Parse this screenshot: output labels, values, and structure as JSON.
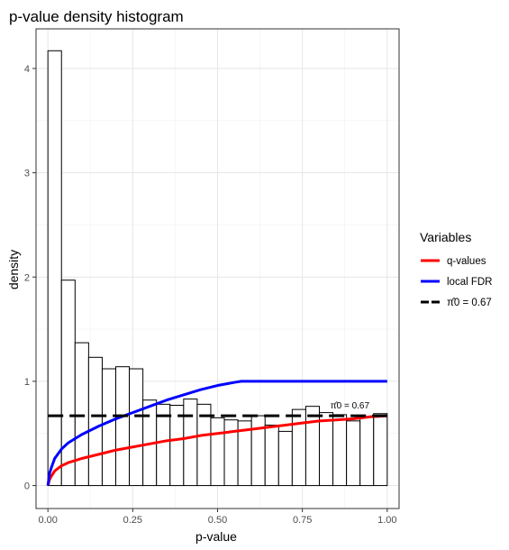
{
  "chart_data": {
    "type": "bar",
    "title": "p-value density histogram",
    "xlabel": "p-value",
    "ylabel": "density",
    "xlim": [
      -0.035,
      1.035
    ],
    "ylim": [
      -0.22,
      4.38
    ],
    "x_ticks": [
      0,
      0.25,
      0.5,
      0.75,
      1
    ],
    "x_tick_labels": [
      "0.00",
      "0.25",
      "0.50",
      "0.75",
      "1.00"
    ],
    "y_ticks": [
      0,
      1,
      2,
      3,
      4
    ],
    "y_tick_labels": [
      "0",
      "1",
      "2",
      "3",
      "4"
    ],
    "grid": true,
    "histogram": {
      "bin_width": 0.04,
      "bin_starts": [
        0,
        0.04,
        0.08,
        0.12,
        0.16,
        0.2,
        0.24,
        0.28,
        0.32,
        0.36,
        0.4,
        0.44,
        0.48,
        0.52,
        0.56,
        0.6,
        0.64,
        0.68,
        0.72,
        0.76,
        0.8,
        0.84,
        0.88,
        0.92,
        0.96
      ],
      "values": [
        4.17,
        1.97,
        1.37,
        1.23,
        1.12,
        1.14,
        1.12,
        0.82,
        0.78,
        0.77,
        0.83,
        0.78,
        0.65,
        0.63,
        0.62,
        0.67,
        0.58,
        0.52,
        0.73,
        0.76,
        0.7,
        0.68,
        0.62,
        0.66,
        0.69
      ]
    },
    "series": [
      {
        "name": "q-values",
        "color": "#ff0000",
        "x": [
          0,
          0.005,
          0.01,
          0.02,
          0.04,
          0.06,
          0.08,
          0.1,
          0.15,
          0.2,
          0.25,
          0.3,
          0.35,
          0.4,
          0.45,
          0.5,
          0.55,
          0.6,
          0.65,
          0.7,
          0.75,
          0.8,
          0.85,
          0.9,
          0.95,
          1.0
        ],
        "values": [
          0.0,
          0.06,
          0.09,
          0.14,
          0.19,
          0.22,
          0.24,
          0.26,
          0.3,
          0.34,
          0.37,
          0.4,
          0.43,
          0.45,
          0.48,
          0.5,
          0.52,
          0.54,
          0.56,
          0.58,
          0.6,
          0.62,
          0.63,
          0.64,
          0.66,
          0.67
        ]
      },
      {
        "name": "local FDR",
        "color": "#0000ff",
        "x": [
          0,
          0.005,
          0.01,
          0.02,
          0.04,
          0.06,
          0.08,
          0.1,
          0.15,
          0.2,
          0.25,
          0.3,
          0.35,
          0.4,
          0.45,
          0.5,
          0.55,
          0.57,
          0.6,
          0.7,
          0.8,
          0.9,
          1.0
        ],
        "values": [
          0.0,
          0.12,
          0.17,
          0.26,
          0.35,
          0.41,
          0.45,
          0.49,
          0.57,
          0.64,
          0.7,
          0.76,
          0.82,
          0.87,
          0.92,
          0.96,
          0.99,
          1.0,
          1.0,
          1.0,
          1.0,
          1.0,
          1.0
        ]
      },
      {
        "name": "π̂0 = 0.67",
        "color": "#000000",
        "dashed": true,
        "x": [
          0,
          1
        ],
        "values": [
          0.67,
          0.67
        ]
      }
    ],
    "annotation": {
      "text": "π̂0 = 0.67",
      "x": 0.89,
      "y": 0.67
    },
    "legend": {
      "title": "Variables",
      "position": "right",
      "items": [
        {
          "label": "q-values",
          "color": "#ff0000",
          "dashed": false
        },
        {
          "label": "local FDR",
          "color": "#0000ff",
          "dashed": false
        },
        {
          "label": "π̂0 = 0.67",
          "color": "#000000",
          "dashed": true
        }
      ]
    }
  }
}
